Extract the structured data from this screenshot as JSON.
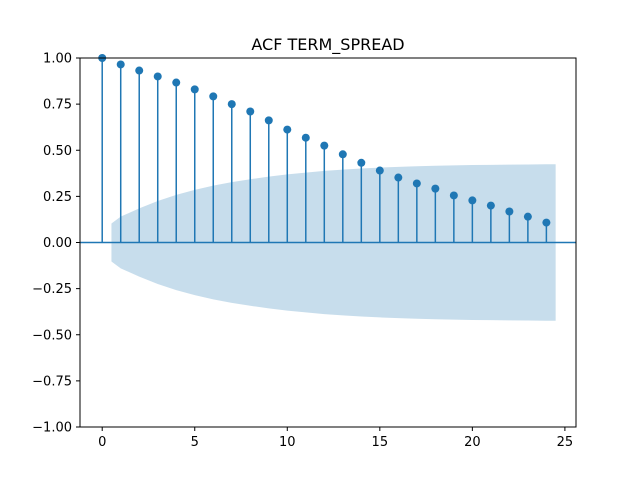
{
  "chart_data": {
    "type": "stem",
    "title": "ACF TERM_SPREAD",
    "xlabel": "",
    "ylabel": "",
    "xlim": [
      -1.2,
      25.6
    ],
    "ylim": [
      -1.0,
      1.0
    ],
    "x_ticks": [
      0,
      5,
      10,
      15,
      20,
      25
    ],
    "y_ticks": [
      -1.0,
      -0.75,
      -0.5,
      -0.25,
      0.0,
      0.25,
      0.5,
      0.75,
      1.0
    ],
    "x_tick_labels": [
      "0",
      "5",
      "10",
      "15",
      "20",
      "25"
    ],
    "y_tick_labels": [
      "−1.00",
      "−0.75",
      "−0.50",
      "−0.25",
      "0.00",
      "0.25",
      "0.50",
      "0.75",
      "1.00"
    ],
    "grid": false,
    "lags": [
      0,
      1,
      2,
      3,
      4,
      5,
      6,
      7,
      8,
      9,
      10,
      11,
      12,
      13,
      14,
      15,
      16,
      17,
      18,
      19,
      20,
      21,
      22,
      23,
      24
    ],
    "acf": [
      1.0,
      0.965,
      0.932,
      0.9,
      0.867,
      0.83,
      0.792,
      0.75,
      0.71,
      0.662,
      0.612,
      0.568,
      0.525,
      0.478,
      0.432,
      0.39,
      0.352,
      0.32,
      0.292,
      0.255,
      0.228,
      0.2,
      0.168,
      0.14,
      0.108
    ],
    "confidence_band": {
      "x": [
        0.5,
        1,
        2,
        3,
        4,
        5,
        6,
        7,
        8,
        9,
        10,
        11,
        12,
        13,
        14,
        15,
        16,
        17,
        18,
        19,
        20,
        21,
        22,
        23,
        24,
        24.5
      ],
      "upper": [
        0.103,
        0.14,
        0.185,
        0.225,
        0.258,
        0.285,
        0.308,
        0.327,
        0.343,
        0.357,
        0.369,
        0.379,
        0.388,
        0.395,
        0.401,
        0.406,
        0.41,
        0.413,
        0.416,
        0.418,
        0.42,
        0.421,
        0.422,
        0.423,
        0.424,
        0.424
      ]
    },
    "colors": {
      "stem": "#1f77b4",
      "band": "#1f77b4",
      "baseline": "#1f77b4"
    }
  }
}
